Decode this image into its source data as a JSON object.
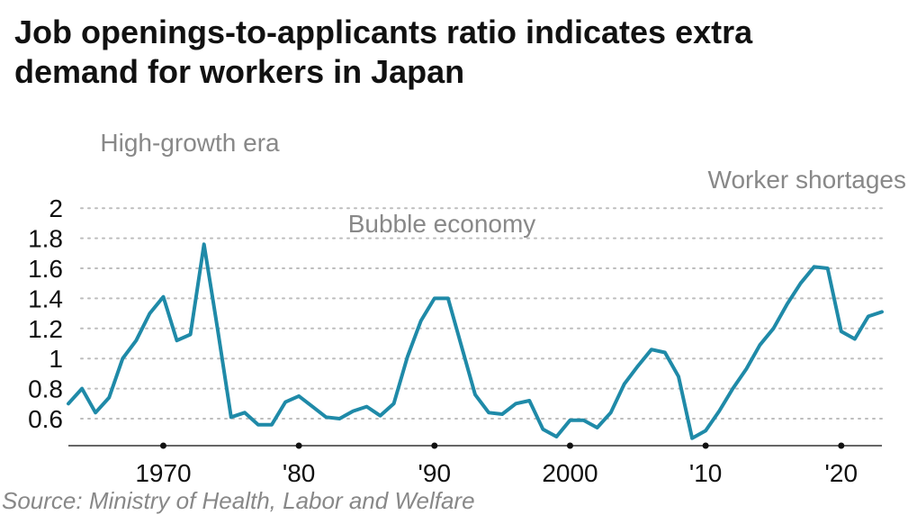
{
  "title_lines": [
    "Job openings-to-applicants ratio indicates extra",
    "demand for workers in Japan"
  ],
  "source": "Source: Ministry of Health, Labor and Welfare",
  "colors": {
    "line": "#1f8aa8",
    "grid": "#bdbdbd",
    "axis": "#333333",
    "annotation": "#888888",
    "text": "#111111"
  },
  "chart_data": {
    "type": "line",
    "title": "Job openings-to-applicants ratio indicates extra demand for workers in Japan",
    "xlabel": "",
    "ylabel": "",
    "ylim": [
      0.47,
      2
    ],
    "xlim": [
      1963,
      2023
    ],
    "grid": true,
    "yticks": [
      0.6,
      0.8,
      1,
      1.2,
      1.4,
      1.6,
      1.8,
      2
    ],
    "ytick_labels": [
      "0.6",
      "0.8",
      "1",
      "1.2",
      "1.4",
      "1.6",
      "1.8",
      "2"
    ],
    "xticks": [
      1970,
      1980,
      1990,
      2000,
      2010,
      2020
    ],
    "xtick_labels": [
      "1970",
      "'80",
      "'90",
      "2000",
      "'10",
      "'20"
    ],
    "series": [
      {
        "name": "Job openings-to-applicants ratio",
        "x": [
          1963,
          1964,
          1965,
          1966,
          1967,
          1968,
          1969,
          1970,
          1971,
          1972,
          1973,
          1974,
          1975,
          1976,
          1977,
          1978,
          1979,
          1980,
          1981,
          1982,
          1983,
          1984,
          1985,
          1986,
          1987,
          1988,
          1989,
          1990,
          1991,
          1992,
          1993,
          1994,
          1995,
          1996,
          1997,
          1998,
          1999,
          2000,
          2001,
          2002,
          2003,
          2004,
          2005,
          2006,
          2007,
          2008,
          2009,
          2010,
          2011,
          2012,
          2013,
          2014,
          2015,
          2016,
          2017,
          2018,
          2019,
          2020,
          2021,
          2022,
          2023
        ],
        "values": [
          0.7,
          0.8,
          0.64,
          0.74,
          1.0,
          1.12,
          1.3,
          1.41,
          1.12,
          1.16,
          1.76,
          1.2,
          0.61,
          0.64,
          0.56,
          0.56,
          0.71,
          0.75,
          0.68,
          0.61,
          0.6,
          0.65,
          0.68,
          0.62,
          0.7,
          1.01,
          1.25,
          1.4,
          1.4,
          1.08,
          0.76,
          0.64,
          0.63,
          0.7,
          0.72,
          0.53,
          0.48,
          0.59,
          0.59,
          0.54,
          0.64,
          0.83,
          0.95,
          1.06,
          1.04,
          0.88,
          0.47,
          0.52,
          0.65,
          0.8,
          0.93,
          1.09,
          1.2,
          1.36,
          1.5,
          1.61,
          1.6,
          1.18,
          1.13,
          1.28,
          1.31
        ]
      }
    ],
    "annotations": [
      {
        "text": "High-growth era",
        "x": 1972
      },
      {
        "text": "Bubble economy",
        "x": 1991
      },
      {
        "text": "Worker shortages",
        "x": 2018
      }
    ]
  }
}
